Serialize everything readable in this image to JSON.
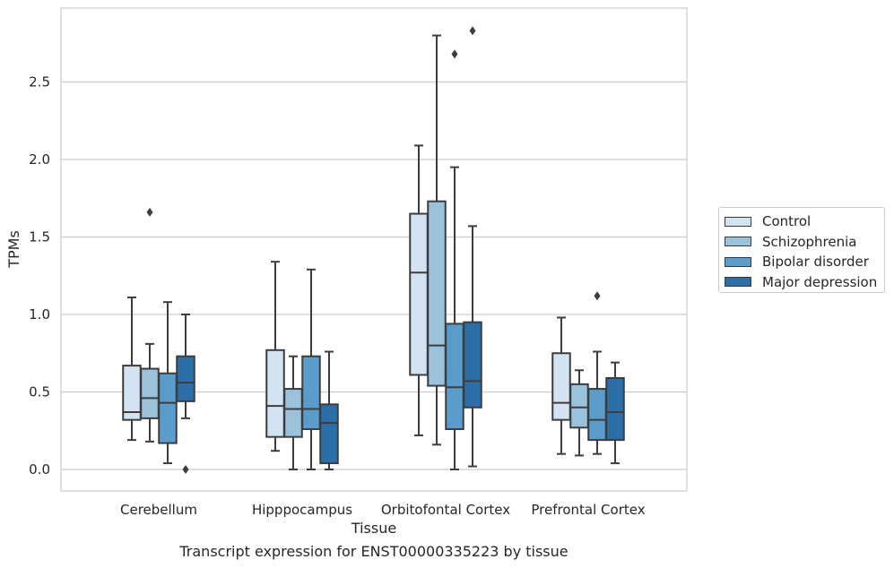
{
  "chart_data": {
    "type": "box",
    "xlabel": "Tissue",
    "ylabel": "TPMs",
    "caption": "Transcript expression for ENST00000335223 by tissue",
    "ylim": [
      -0.14,
      2.98
    ],
    "yticks": [
      "0.0",
      "0.5",
      "1.0",
      "1.5",
      "2.0",
      "2.5"
    ],
    "grid": "horizontal",
    "legend_position": "right",
    "categories": [
      "Cerebellum",
      "Hipppocampus",
      "Orbitofontal Cortex",
      "Prefrontal Cortex"
    ],
    "series": [
      {
        "name": "Control",
        "color": "#d3e3f2",
        "boxes": [
          {
            "whislo": 0.19,
            "q1": 0.32,
            "med": 0.37,
            "q3": 0.67,
            "whishi": 1.11,
            "fliers": []
          },
          {
            "whislo": 0.12,
            "q1": 0.21,
            "med": 0.41,
            "q3": 0.77,
            "whishi": 1.34,
            "fliers": []
          },
          {
            "whislo": 0.22,
            "q1": 0.61,
            "med": 1.27,
            "q3": 1.65,
            "whishi": 2.09,
            "fliers": []
          },
          {
            "whislo": 0.1,
            "q1": 0.32,
            "med": 0.43,
            "q3": 0.75,
            "whishi": 0.98,
            "fliers": []
          }
        ]
      },
      {
        "name": "Schizophrenia",
        "color": "#9ac2dc",
        "boxes": [
          {
            "whislo": 0.18,
            "q1": 0.33,
            "med": 0.46,
            "q3": 0.65,
            "whishi": 0.81,
            "fliers": [
              1.66
            ]
          },
          {
            "whislo": 0.0,
            "q1": 0.21,
            "med": 0.39,
            "q3": 0.52,
            "whishi": 0.73,
            "fliers": []
          },
          {
            "whislo": 0.16,
            "q1": 0.54,
            "med": 0.8,
            "q3": 1.73,
            "whishi": 2.8,
            "fliers": []
          },
          {
            "whislo": 0.09,
            "q1": 0.27,
            "med": 0.4,
            "q3": 0.55,
            "whishi": 0.64,
            "fliers": []
          }
        ]
      },
      {
        "name": "Bipolar disorder",
        "color": "#5a9ccb",
        "boxes": [
          {
            "whislo": 0.04,
            "q1": 0.17,
            "med": 0.43,
            "q3": 0.62,
            "whishi": 1.08,
            "fliers": []
          },
          {
            "whislo": 0.0,
            "q1": 0.26,
            "med": 0.39,
            "q3": 0.73,
            "whishi": 1.29,
            "fliers": []
          },
          {
            "whislo": 0.0,
            "q1": 0.26,
            "med": 0.53,
            "q3": 0.94,
            "whishi": 1.95,
            "fliers": [
              2.68
            ]
          },
          {
            "whislo": 0.1,
            "q1": 0.19,
            "med": 0.32,
            "q3": 0.52,
            "whishi": 0.76,
            "fliers": [
              1.12
            ]
          }
        ]
      },
      {
        "name": "Major depression",
        "color": "#2c6ea8",
        "boxes": [
          {
            "whislo": 0.33,
            "q1": 0.44,
            "med": 0.56,
            "q3": 0.73,
            "whishi": 1.0,
            "fliers": [
              0.0
            ]
          },
          {
            "whislo": 0.0,
            "q1": 0.04,
            "med": 0.3,
            "q3": 0.42,
            "whishi": 0.76,
            "fliers": []
          },
          {
            "whislo": 0.02,
            "q1": 0.4,
            "med": 0.57,
            "q3": 0.95,
            "whishi": 1.57,
            "fliers": [
              2.83
            ]
          },
          {
            "whislo": 0.04,
            "q1": 0.19,
            "med": 0.37,
            "q3": 0.59,
            "whishi": 0.69,
            "fliers": []
          }
        ]
      }
    ]
  }
}
